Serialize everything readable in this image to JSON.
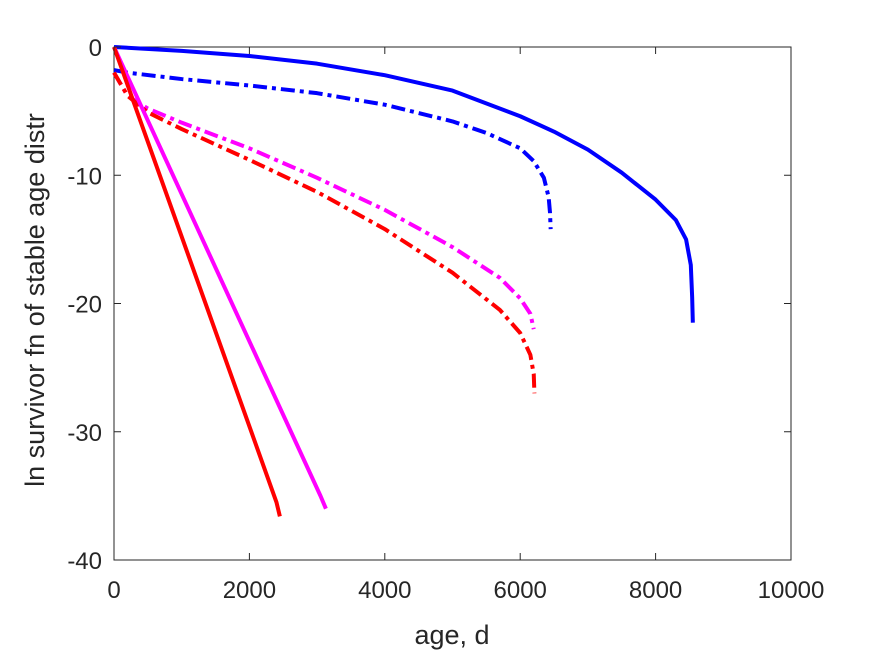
{
  "chart_data": {
    "type": "line",
    "title": "",
    "xlabel": "age, d",
    "ylabel": "ln survivor fn of stable age distr",
    "xlim": [
      0,
      10000
    ],
    "ylim": [
      -40,
      0
    ],
    "x_ticks": [
      0,
      2000,
      4000,
      6000,
      8000,
      10000
    ],
    "y_ticks": [
      0,
      -10,
      -20,
      -30,
      -40
    ],
    "x_tick_labels": [
      "0",
      "2000",
      "4000",
      "6000",
      "8000",
      "10000"
    ],
    "y_tick_labels": [
      "0",
      "-10",
      "-20",
      "-30",
      "-40"
    ],
    "grid": false,
    "legend": "none",
    "series": [
      {
        "color": "#0000ff",
        "style": "solid",
        "points": [
          [
            0,
            0
          ],
          [
            1000,
            -0.3
          ],
          [
            2000,
            -0.7
          ],
          [
            3000,
            -1.3
          ],
          [
            4000,
            -2.2
          ],
          [
            5000,
            -3.4
          ],
          [
            6000,
            -5.4
          ],
          [
            6500,
            -6.6
          ],
          [
            7000,
            -8.0
          ],
          [
            7500,
            -9.8
          ],
          [
            8000,
            -11.9
          ],
          [
            8300,
            -13.5
          ],
          [
            8450,
            -15.0
          ],
          [
            8520,
            -17.0
          ],
          [
            8540,
            -19.5
          ],
          [
            8550,
            -21.5
          ]
        ]
      },
      {
        "color": "#0000ff",
        "style": "dashdot",
        "points": [
          [
            0,
            -1.8
          ],
          [
            200,
            -2.0
          ],
          [
            1000,
            -2.5
          ],
          [
            2000,
            -3.0
          ],
          [
            3000,
            -3.6
          ],
          [
            4000,
            -4.5
          ],
          [
            5000,
            -5.8
          ],
          [
            5500,
            -6.7
          ],
          [
            6000,
            -7.9
          ],
          [
            6200,
            -8.9
          ],
          [
            6350,
            -10.2
          ],
          [
            6420,
            -11.7
          ],
          [
            6440,
            -12.9
          ],
          [
            6450,
            -14.2
          ]
        ]
      },
      {
        "color": "#ff00ff",
        "style": "dashdot",
        "points": [
          [
            0,
            -2.0
          ],
          [
            200,
            -3.8
          ],
          [
            500,
            -4.8
          ],
          [
            1000,
            -5.9
          ],
          [
            2000,
            -7.9
          ],
          [
            3000,
            -10.2
          ],
          [
            4000,
            -12.7
          ],
          [
            5000,
            -15.6
          ],
          [
            5700,
            -18.0
          ],
          [
            6000,
            -19.6
          ],
          [
            6150,
            -20.8
          ],
          [
            6200,
            -22.0
          ]
        ]
      },
      {
        "color": "#ff0000",
        "style": "dashdot",
        "points": [
          [
            0,
            -2.0
          ],
          [
            200,
            -3.8
          ],
          [
            500,
            -5.1
          ],
          [
            1000,
            -6.4
          ],
          [
            2000,
            -8.8
          ],
          [
            3000,
            -11.3
          ],
          [
            4000,
            -14.2
          ],
          [
            5000,
            -17.6
          ],
          [
            5700,
            -20.5
          ],
          [
            6000,
            -22.3
          ],
          [
            6150,
            -24.0
          ],
          [
            6200,
            -25.5
          ],
          [
            6210,
            -27.0
          ]
        ]
      },
      {
        "color": "#ff00ff",
        "style": "solid",
        "points": [
          [
            0,
            0
          ],
          [
            3050,
            -35.0
          ],
          [
            3130,
            -36.0
          ]
        ]
      },
      {
        "color": "#ff0000",
        "style": "solid",
        "points": [
          [
            0,
            0
          ],
          [
            2400,
            -35.5
          ],
          [
            2450,
            -36.6
          ]
        ]
      }
    ]
  }
}
